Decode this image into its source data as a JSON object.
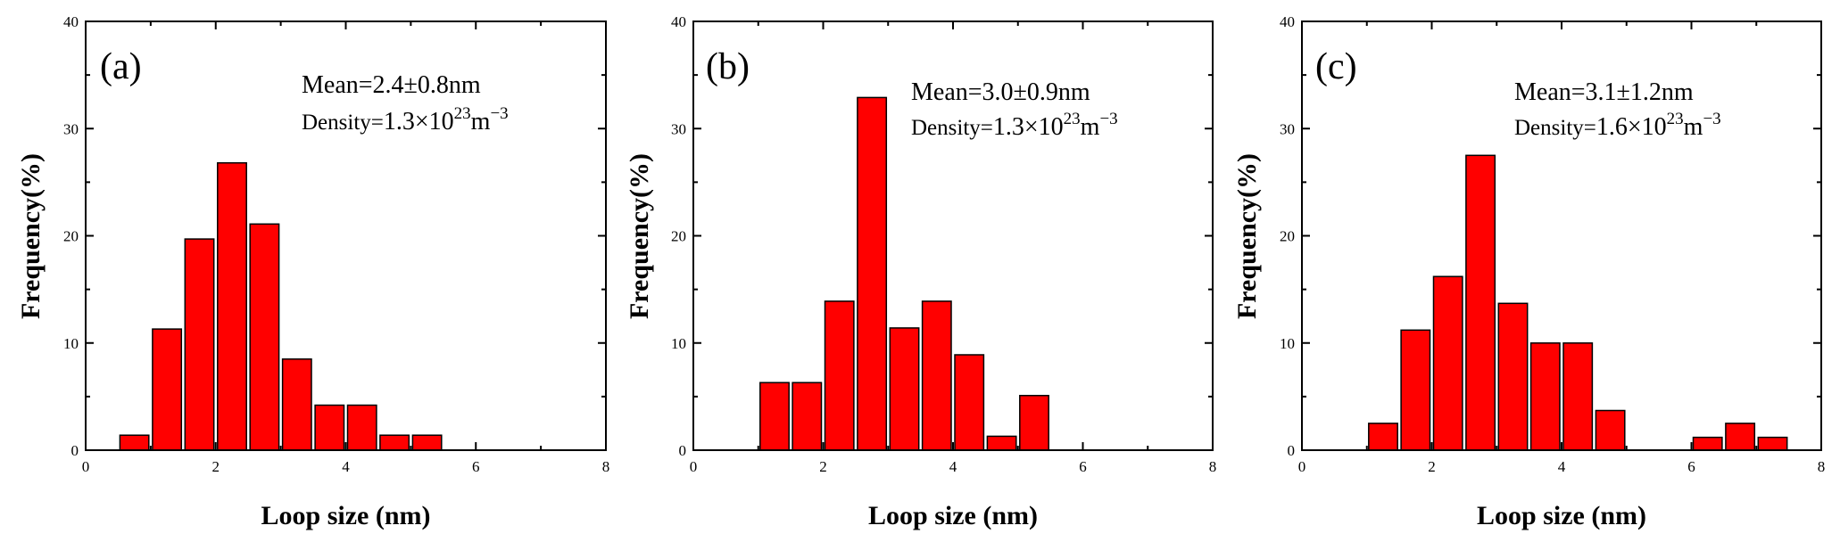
{
  "figure": {
    "bar_color": "#ff0000",
    "outline_color": "#000000"
  },
  "chart_data": [
    {
      "type": "bar",
      "panel_label": "(a)",
      "xlabel": "Loop size (nm)",
      "ylabel": "Frequency(%)",
      "xlim": [
        0,
        8
      ],
      "ylim": [
        0,
        40
      ],
      "xticks": [
        "0",
        "2",
        "4",
        "6",
        "8"
      ],
      "yticks": [
        "0",
        "10",
        "20",
        "30",
        "40"
      ],
      "bin_width": 0.5,
      "bin_centers": [
        0.75,
        1.25,
        1.75,
        2.25,
        2.75,
        3.25,
        3.75,
        4.25,
        4.75,
        5.25
      ],
      "values": [
        1.4,
        11.3,
        19.7,
        26.8,
        21.1,
        8.5,
        4.2,
        4.2,
        1.4,
        1.4
      ],
      "mean_text": "Mean=2.4",
      "mean_pm": "±",
      "mean_value": "0.8nm",
      "density_text": "Density=",
      "density_value": "1.3×10",
      "density_exp": "23",
      "density_unit": "m",
      "density_unit_exp": "−3"
    },
    {
      "type": "bar",
      "panel_label": "(b)",
      "xlabel": "Loop size (nm)",
      "ylabel": "Frequency(%)",
      "xlim": [
        0,
        8
      ],
      "ylim": [
        0,
        40
      ],
      "xticks": [
        "0",
        "2",
        "4",
        "6",
        "8"
      ],
      "yticks": [
        "0",
        "10",
        "20",
        "30",
        "40"
      ],
      "bin_width": 0.5,
      "bin_centers": [
        1.25,
        1.75,
        2.25,
        2.75,
        3.25,
        3.75,
        4.25,
        4.75,
        5.25
      ],
      "values": [
        6.3,
        6.3,
        13.9,
        32.9,
        11.4,
        13.9,
        8.9,
        1.3,
        5.1
      ],
      "mean_text": "Mean=3.0",
      "mean_pm": "±",
      "mean_value": "0.9nm",
      "density_text": "Density=",
      "density_value": "1.3×10",
      "density_exp": "23",
      "density_unit": "m",
      "density_unit_exp": "−3"
    },
    {
      "type": "bar",
      "panel_label": "(c)",
      "xlabel": "Loop size (nm)",
      "ylabel": "Frequency(%)",
      "xlim": [
        0,
        8
      ],
      "ylim": [
        0,
        40
      ],
      "xticks": [
        "0",
        "2",
        "4",
        "6",
        "8"
      ],
      "yticks": [
        "0",
        "10",
        "20",
        "30",
        "40"
      ],
      "bin_width": 0.5,
      "bin_centers": [
        1.25,
        1.75,
        2.25,
        2.75,
        3.25,
        3.75,
        4.25,
        4.75,
        6.25,
        6.75,
        7.25
      ],
      "values": [
        2.5,
        11.2,
        16.2,
        27.5,
        13.7,
        10.0,
        10.0,
        3.7,
        1.2,
        2.5,
        1.2
      ],
      "mean_text": "Mean=3.1",
      "mean_pm": "±",
      "mean_value": "1.2nm",
      "density_text": "Density=",
      "density_value": "1.6×10",
      "density_exp": "23",
      "density_unit": "m",
      "density_unit_exp": "−3"
    }
  ]
}
